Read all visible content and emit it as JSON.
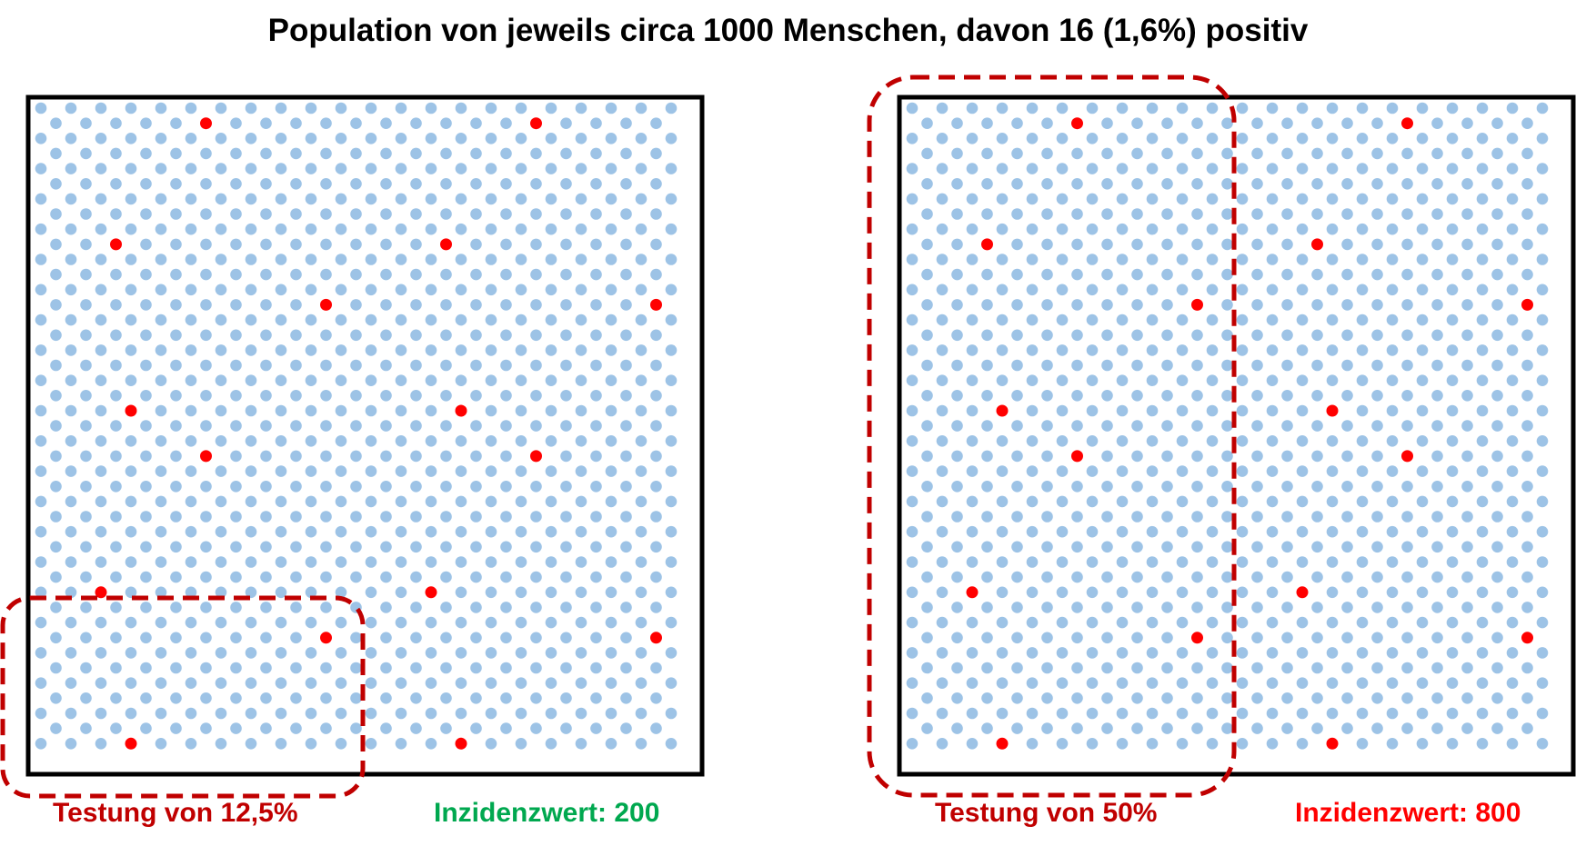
{
  "title": "Population von jeweils circa 1000 Menschen, davon 16 (1,6%) positiv",
  "colors": {
    "healthy_dot": "#9dc3e6",
    "positive_dot": "#ff0000",
    "test_region_border": "#c00000",
    "incidence_low": "#00a84f",
    "incidence_high": "#ff0000"
  },
  "panels": [
    {
      "testing_label": "Testung von 12,5%",
      "incidence_label": "Inzidenzwert: 200",
      "tested_fraction": 0.125,
      "population": 1000,
      "positives": 16
    },
    {
      "testing_label": "Testung von 50%",
      "incidence_label": "Inzidenzwert: 800",
      "tested_fraction": 0.5,
      "population": 1000,
      "positives": 16
    }
  ]
}
